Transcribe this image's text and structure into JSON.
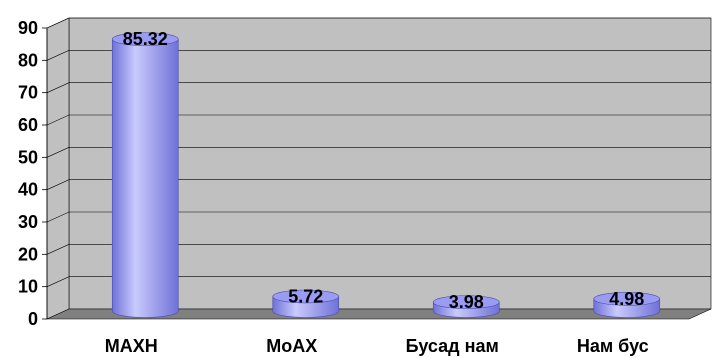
{
  "chart_data": {
    "type": "bar",
    "style": "3d-cylinder",
    "categories": [
      "МАХН",
      "МоАХ",
      "Бусад нам",
      "Нам бус"
    ],
    "values": [
      85.32,
      5.72,
      3.98,
      4.98
    ],
    "data_labels": [
      "85.32",
      "5.72",
      "3.98",
      "4.98"
    ],
    "ylim": [
      0,
      90
    ],
    "yticks": [
      0,
      10,
      20,
      30,
      40,
      50,
      60,
      70,
      80,
      90
    ],
    "grid": true,
    "legend": "none",
    "colors": {
      "bar": "#9a9cf4",
      "bar_dark": "#6f71d8",
      "bar_light": "#c9cafc",
      "wall": "#c0c0c0",
      "floor": "#808080",
      "grid": "#000000"
    }
  }
}
